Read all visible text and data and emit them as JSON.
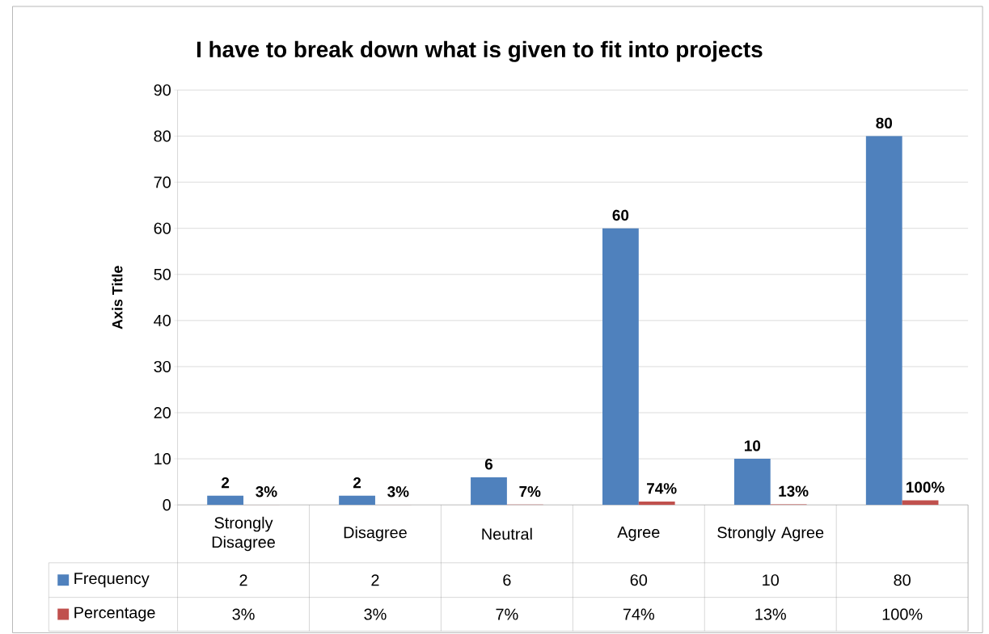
{
  "chart_data": {
    "type": "bar",
    "title": "I have to break down what is given to fit into projects",
    "ylabel": "Axis Title",
    "categories": [
      "Strongly Disagree",
      "Disagree",
      "Neutral",
      "Agree",
      "Strongly Agree",
      null
    ],
    "series": [
      {
        "name": "Frequency",
        "color": "#4f81bd",
        "values": [
          2,
          2,
          6,
          60,
          10,
          80
        ],
        "value_labels": [
          "2",
          "2",
          "6",
          "60",
          "10",
          "80"
        ]
      },
      {
        "name": "Percentage",
        "color": "#c0504d",
        "values": [
          0.03,
          0.03,
          0.07,
          0.74,
          0.13,
          1.0
        ],
        "value_labels": [
          "3%",
          "3%",
          "7%",
          "74%",
          "13%",
          "100%"
        ]
      }
    ],
    "ylim": [
      0,
      90
    ],
    "yticks": [
      0,
      10,
      20,
      30,
      40,
      50,
      60,
      70,
      80,
      90
    ],
    "grid": "y",
    "legend": "bottom"
  }
}
